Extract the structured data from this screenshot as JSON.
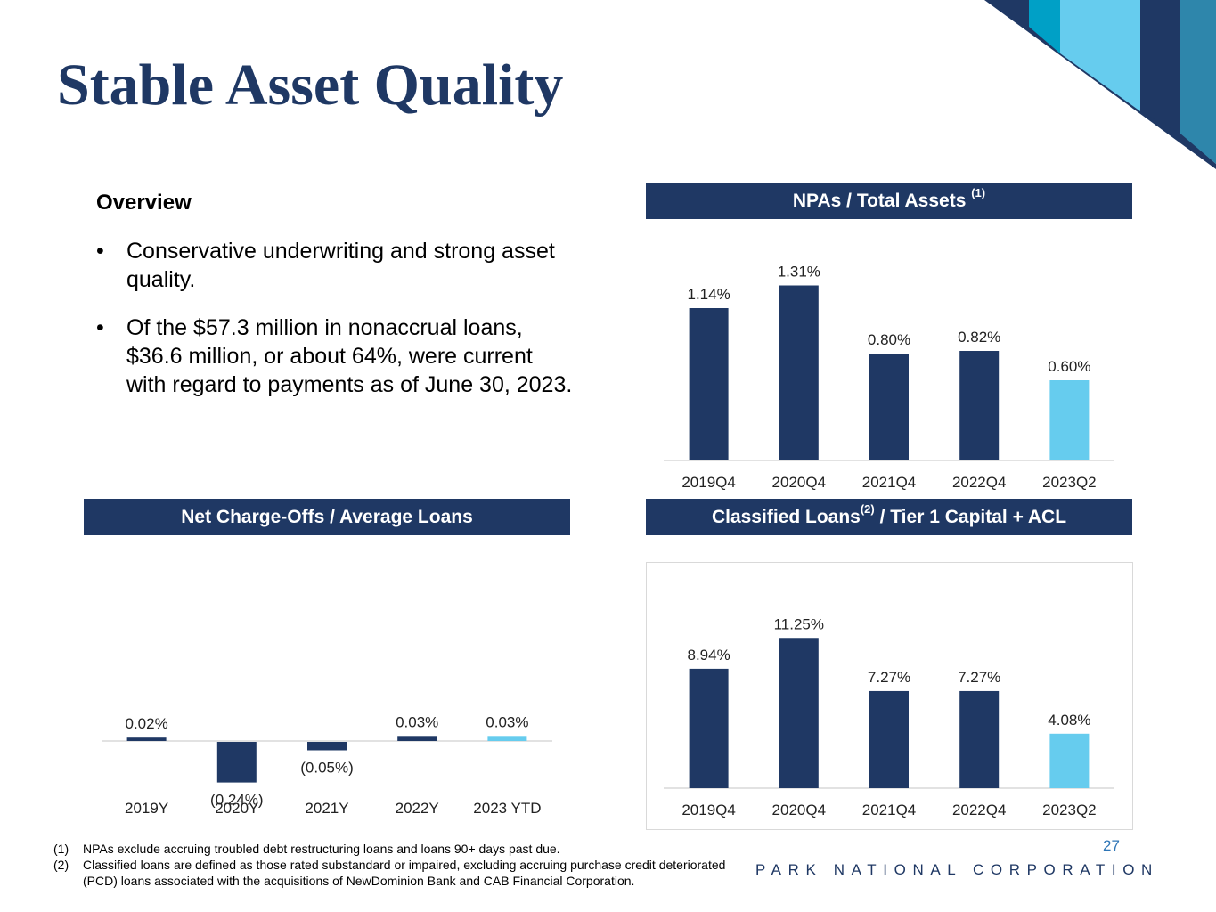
{
  "slide": {
    "title": "Stable Asset Quality",
    "page_number": "27",
    "company": "PARK NATIONAL CORPORATION"
  },
  "overview": {
    "heading": "Overview",
    "bullet_symbol": "•",
    "bullets": [
      "Conservative underwriting and strong asset quality.",
      "Of the $57.3 million in nonaccrual loans, $36.6 million, or about 64%, were current with regard to payments as of June 30, 2023."
    ]
  },
  "banners": {
    "npa": {
      "text": "NPAs / Total Assets ",
      "sup": "(1)"
    },
    "nco": {
      "text": "Net Charge-Offs / Average Loans"
    },
    "classified": {
      "text": "Classified Loans",
      "sup": "(2)",
      "text2": " / Tier 1 Capital + ACL"
    }
  },
  "colors": {
    "dark": "#1f3864",
    "light": "#66ccee",
    "mid": "#00a0c6",
    "teal": "#2e86ab",
    "axis": "#d9d9d9"
  },
  "chart_data": [
    {
      "id": "npa",
      "type": "bar",
      "title": "NPAs / Total Assets (1)",
      "categories": [
        "2019Q4",
        "2020Q4",
        "2021Q4",
        "2022Q4",
        "2023Q2"
      ],
      "values": [
        1.14,
        1.31,
        0.8,
        0.82,
        0.6
      ],
      "labels": [
        "1.14%",
        "1.31%",
        "0.80%",
        "0.82%",
        "0.60%"
      ],
      "highlight_last": true,
      "ylim": [
        0,
        1.5
      ]
    },
    {
      "id": "nco",
      "type": "bar",
      "title": "Net Charge-Offs / Average Loans",
      "categories": [
        "2019Y",
        "2020Y",
        "2021Y",
        "2022Y",
        "2023 YTD"
      ],
      "values": [
        0.02,
        -0.24,
        -0.05,
        0.03,
        0.03
      ],
      "labels": [
        "0.02%",
        "(0.24%)",
        "(0.05%)",
        "0.03%",
        "0.03%"
      ],
      "highlight_last": true,
      "ylim": [
        -0.3,
        1.0
      ]
    },
    {
      "id": "classified",
      "type": "bar",
      "title": "Classified Loans(2) / Tier 1 Capital + ACL",
      "categories": [
        "2019Q4",
        "2020Q4",
        "2021Q4",
        "2022Q4",
        "2023Q2"
      ],
      "values": [
        8.94,
        11.25,
        7.27,
        7.27,
        4.08
      ],
      "labels": [
        "8.94%",
        "11.25%",
        "7.27%",
        "7.27%",
        "4.08%"
      ],
      "highlight_last": true,
      "ylim": [
        0,
        12
      ]
    }
  ],
  "footnotes": [
    {
      "num": "(1)",
      "text": "NPAs exclude accruing troubled debt restructuring loans and loans 90+ days past due."
    },
    {
      "num": "(2)",
      "text": "Classified loans are defined as those rated substandard or impaired, excluding accruing purchase credit deteriorated (PCD) loans associated with the acquisitions of NewDominion Bank and CAB Financial Corporation."
    }
  ]
}
